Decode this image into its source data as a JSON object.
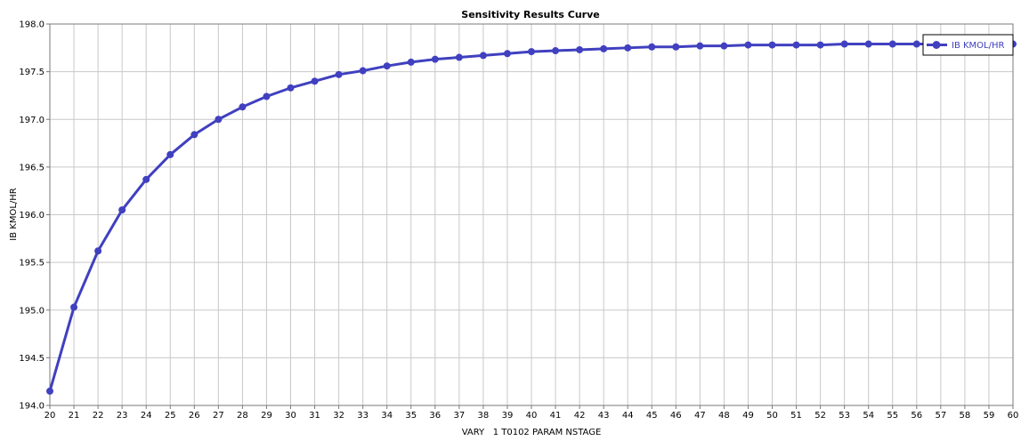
{
  "chart_data": {
    "type": "line",
    "title": "Sensitivity Results Curve",
    "xlabel": "VARY   1 T0102 PARAM NSTAGE",
    "ylabel": "IB KMOL/HR",
    "xlim": [
      20,
      60
    ],
    "ylim": [
      194.0,
      198.0
    ],
    "x_ticks": [
      "20",
      "21",
      "22",
      "23",
      "24",
      "25",
      "26",
      "27",
      "28",
      "29",
      "30",
      "31",
      "32",
      "33",
      "34",
      "35",
      "36",
      "37",
      "38",
      "39",
      "40",
      "41",
      "42",
      "43",
      "44",
      "45",
      "46",
      "47",
      "48",
      "49",
      "50",
      "51",
      "52",
      "53",
      "54",
      "55",
      "56",
      "57",
      "58",
      "59",
      "60"
    ],
    "y_ticks": [
      "194.0",
      "194.5",
      "195.0",
      "195.5",
      "196.0",
      "196.5",
      "197.0",
      "197.5",
      "198.0"
    ],
    "grid": true,
    "legend_position": "top-right",
    "x": [
      20,
      21,
      22,
      23,
      24,
      25,
      26,
      27,
      28,
      29,
      30,
      31,
      32,
      33,
      34,
      35,
      36,
      37,
      38,
      39,
      40,
      41,
      42,
      43,
      44,
      45,
      46,
      47,
      48,
      49,
      50,
      51,
      52,
      53,
      54,
      55,
      56,
      57,
      58,
      59,
      60
    ],
    "series": [
      {
        "name": "IB KMOL/HR",
        "color": "#4040c0",
        "values": [
          194.15,
          195.03,
          195.62,
          196.05,
          196.37,
          196.63,
          196.84,
          197.0,
          197.13,
          197.24,
          197.33,
          197.4,
          197.47,
          197.51,
          197.56,
          197.6,
          197.63,
          197.65,
          197.67,
          197.69,
          197.71,
          197.72,
          197.73,
          197.74,
          197.75,
          197.76,
          197.76,
          197.77,
          197.77,
          197.78,
          197.78,
          197.78,
          197.78,
          197.79,
          197.79,
          197.79,
          197.79,
          197.79,
          197.79,
          197.79,
          197.79
        ]
      }
    ]
  }
}
